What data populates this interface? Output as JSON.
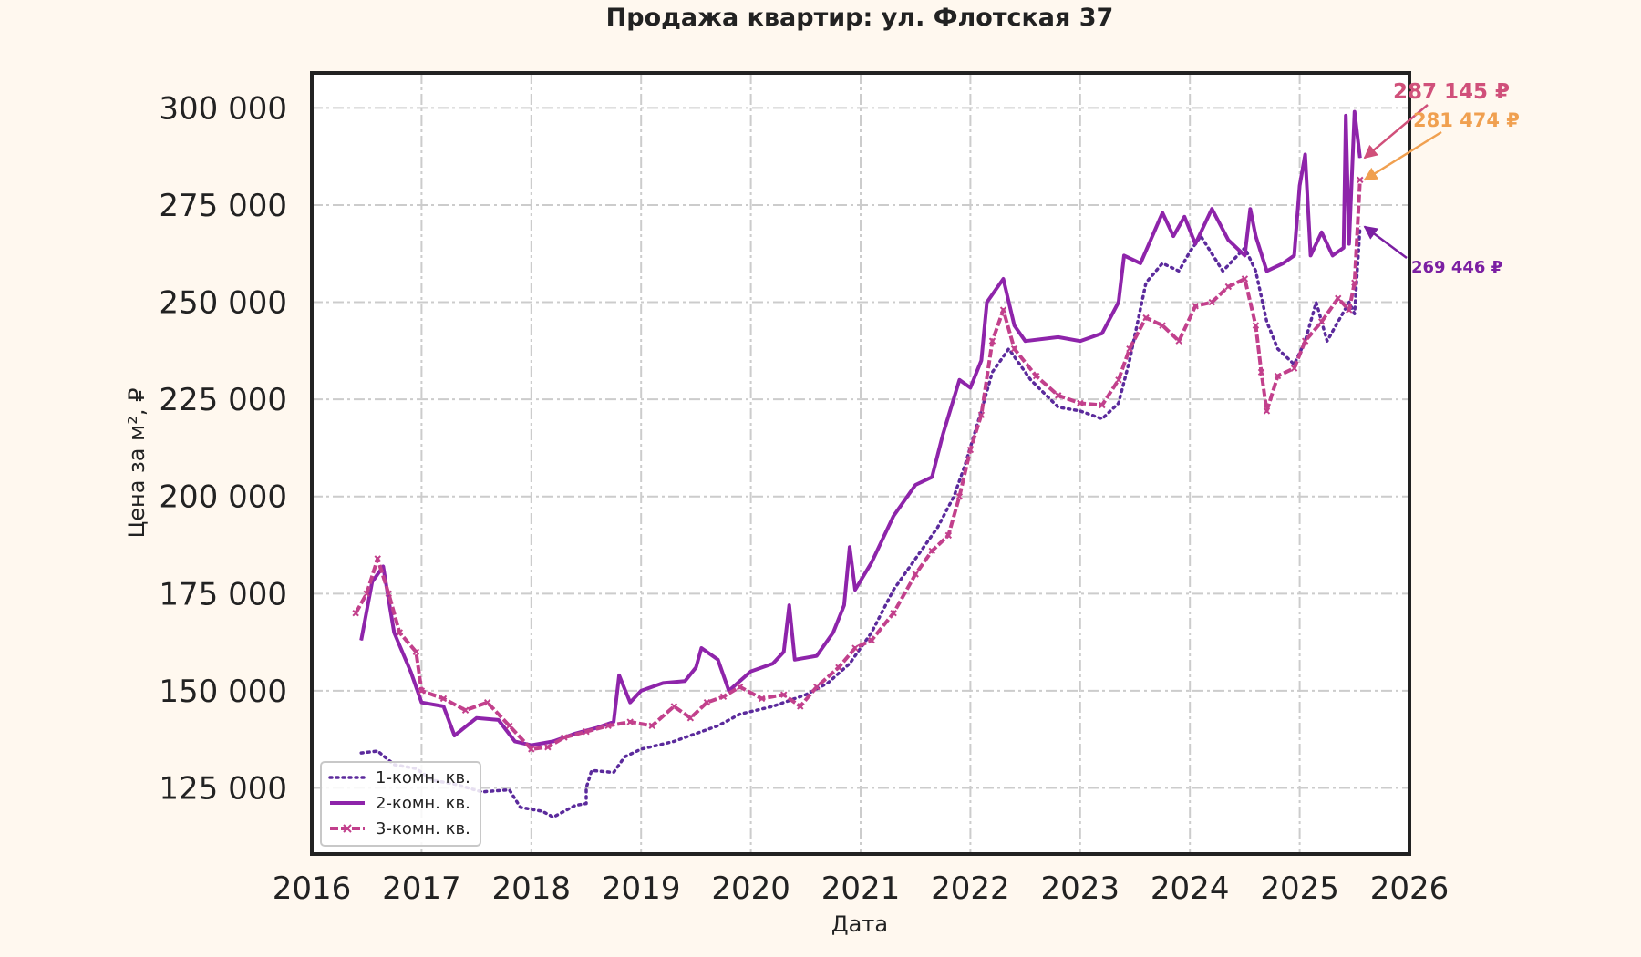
{
  "chart_data": {
    "type": "line",
    "title": "Продажа квартир: ул. Флотская 37",
    "xlabel": "Дата",
    "ylabel": "Цена за м², ₽",
    "xlim": [
      2016,
      2026
    ],
    "ylim": [
      108000,
      309000
    ],
    "x_ticks": [
      "2016",
      "2017",
      "2018",
      "2019",
      "2020",
      "2021",
      "2022",
      "2023",
      "2024",
      "2025",
      "2026"
    ],
    "y_ticks": [
      {
        "value": 125000,
        "label": "125 000"
      },
      {
        "value": 150000,
        "label": "150 000"
      },
      {
        "value": 175000,
        "label": "175 000"
      },
      {
        "value": 200000,
        "label": "200 000"
      },
      {
        "value": 225000,
        "label": "225 000"
      },
      {
        "value": 250000,
        "label": "250 000"
      },
      {
        "value": 275000,
        "label": "275 000"
      },
      {
        "value": 300000,
        "label": "300 000"
      }
    ],
    "grid": true,
    "legend_position": "bottom-left",
    "series": [
      {
        "name": "1-комн. кв.",
        "color": "#5b2a9c",
        "style": "dotted",
        "points": [
          [
            2016.45,
            134000
          ],
          [
            2016.6,
            134500
          ],
          [
            2016.75,
            131000
          ],
          [
            2016.95,
            130000
          ],
          [
            2017.1,
            127000
          ],
          [
            2017.3,
            126000
          ],
          [
            2017.55,
            124000
          ],
          [
            2017.8,
            124500
          ],
          [
            2017.9,
            120000
          ],
          [
            2018.1,
            119000
          ],
          [
            2018.2,
            117500
          ],
          [
            2018.4,
            120500
          ],
          [
            2018.5,
            121000
          ],
          [
            2018.5,
            125000
          ],
          [
            2018.55,
            129500
          ],
          [
            2018.75,
            129000
          ],
          [
            2018.85,
            133000
          ],
          [
            2019.0,
            135000
          ],
          [
            2019.3,
            137000
          ],
          [
            2019.5,
            139000
          ],
          [
            2019.7,
            141000
          ],
          [
            2019.9,
            144000
          ],
          [
            2020.2,
            146000
          ],
          [
            2020.5,
            149000
          ],
          [
            2020.7,
            152000
          ],
          [
            2020.9,
            157000
          ],
          [
            2021.1,
            165000
          ],
          [
            2021.3,
            176000
          ],
          [
            2021.5,
            184000
          ],
          [
            2021.7,
            192000
          ],
          [
            2021.85,
            200000
          ],
          [
            2021.95,
            208000
          ],
          [
            2022.1,
            222000
          ],
          [
            2022.2,
            232000
          ],
          [
            2022.35,
            238000
          ],
          [
            2022.55,
            230000
          ],
          [
            2022.8,
            223000
          ],
          [
            2023.0,
            222000
          ],
          [
            2023.2,
            220000
          ],
          [
            2023.35,
            224000
          ],
          [
            2023.45,
            235000
          ],
          [
            2023.6,
            255000
          ],
          [
            2023.75,
            260000
          ],
          [
            2023.9,
            258000
          ],
          [
            2024.0,
            263000
          ],
          [
            2024.1,
            267000
          ],
          [
            2024.3,
            258000
          ],
          [
            2024.5,
            264000
          ],
          [
            2024.6,
            258000
          ],
          [
            2024.7,
            245000
          ],
          [
            2024.8,
            238000
          ],
          [
            2024.95,
            234000
          ],
          [
            2025.05,
            240000
          ],
          [
            2025.15,
            250000
          ],
          [
            2025.25,
            240000
          ],
          [
            2025.35,
            245000
          ],
          [
            2025.45,
            250000
          ],
          [
            2025.5,
            247000
          ],
          [
            2025.55,
            269446
          ]
        ]
      },
      {
        "name": "2-комн. кв.",
        "color": "#8e24aa",
        "style": "solid",
        "points": [
          [
            2016.45,
            163000
          ],
          [
            2016.55,
            178000
          ],
          [
            2016.65,
            182000
          ],
          [
            2016.75,
            165000
          ],
          [
            2016.9,
            155000
          ],
          [
            2017.0,
            147000
          ],
          [
            2017.2,
            146000
          ],
          [
            2017.3,
            138500
          ],
          [
            2017.5,
            143000
          ],
          [
            2017.7,
            142500
          ],
          [
            2017.85,
            137000
          ],
          [
            2018.0,
            136000
          ],
          [
            2018.2,
            137000
          ],
          [
            2018.4,
            139000
          ],
          [
            2018.6,
            140500
          ],
          [
            2018.75,
            142000
          ],
          [
            2018.8,
            154000
          ],
          [
            2018.9,
            147000
          ],
          [
            2019.0,
            150000
          ],
          [
            2019.2,
            152000
          ],
          [
            2019.4,
            152500
          ],
          [
            2019.5,
            156000
          ],
          [
            2019.55,
            161000
          ],
          [
            2019.7,
            158000
          ],
          [
            2019.8,
            150000
          ],
          [
            2020.0,
            155000
          ],
          [
            2020.2,
            157000
          ],
          [
            2020.3,
            160000
          ],
          [
            2020.35,
            172000
          ],
          [
            2020.4,
            158000
          ],
          [
            2020.6,
            159000
          ],
          [
            2020.75,
            165000
          ],
          [
            2020.85,
            172000
          ],
          [
            2020.9,
            187000
          ],
          [
            2020.95,
            176000
          ],
          [
            2021.1,
            183000
          ],
          [
            2021.3,
            195000
          ],
          [
            2021.5,
            203000
          ],
          [
            2021.65,
            205000
          ],
          [
            2021.75,
            216000
          ],
          [
            2021.9,
            230000
          ],
          [
            2022.0,
            228000
          ],
          [
            2022.1,
            235000
          ],
          [
            2022.15,
            250000
          ],
          [
            2022.3,
            256000
          ],
          [
            2022.4,
            244000
          ],
          [
            2022.5,
            240000
          ],
          [
            2022.8,
            241000
          ],
          [
            2023.0,
            240000
          ],
          [
            2023.2,
            242000
          ],
          [
            2023.35,
            250000
          ],
          [
            2023.4,
            262000
          ],
          [
            2023.55,
            260000
          ],
          [
            2023.75,
            273000
          ],
          [
            2023.85,
            267000
          ],
          [
            2023.95,
            272000
          ],
          [
            2024.05,
            265000
          ],
          [
            2024.2,
            274000
          ],
          [
            2024.35,
            266000
          ],
          [
            2024.5,
            262000
          ],
          [
            2024.55,
            274000
          ],
          [
            2024.6,
            267000
          ],
          [
            2024.7,
            258000
          ],
          [
            2024.85,
            260000
          ],
          [
            2024.95,
            262000
          ],
          [
            2025.0,
            280000
          ],
          [
            2025.05,
            288000
          ],
          [
            2025.1,
            262000
          ],
          [
            2025.2,
            268000
          ],
          [
            2025.3,
            262000
          ],
          [
            2025.4,
            264000
          ],
          [
            2025.42,
            298000
          ],
          [
            2025.45,
            265000
          ],
          [
            2025.5,
            299000
          ],
          [
            2025.55,
            287145
          ]
        ]
      },
      {
        "name": "3-комн. кв.",
        "color": "#c2408c",
        "style": "dashed-x",
        "points": [
          [
            2016.4,
            170000
          ],
          [
            2016.5,
            175000
          ],
          [
            2016.6,
            184000
          ],
          [
            2016.7,
            175000
          ],
          [
            2016.8,
            165000
          ],
          [
            2016.95,
            160000
          ],
          [
            2017.0,
            150000
          ],
          [
            2017.2,
            148000
          ],
          [
            2017.4,
            145000
          ],
          [
            2017.6,
            147000
          ],
          [
            2017.8,
            141000
          ],
          [
            2018.0,
            135000
          ],
          [
            2018.15,
            135500
          ],
          [
            2018.3,
            138000
          ],
          [
            2018.5,
            139500
          ],
          [
            2018.7,
            141000
          ],
          [
            2018.9,
            142000
          ],
          [
            2019.1,
            141000
          ],
          [
            2019.3,
            146000
          ],
          [
            2019.45,
            143000
          ],
          [
            2019.6,
            147000
          ],
          [
            2019.75,
            148500
          ],
          [
            2019.9,
            151000
          ],
          [
            2020.1,
            148000
          ],
          [
            2020.3,
            149000
          ],
          [
            2020.45,
            146000
          ],
          [
            2020.6,
            151000
          ],
          [
            2020.8,
            156000
          ],
          [
            2020.95,
            161000
          ],
          [
            2021.1,
            163000
          ],
          [
            2021.3,
            170000
          ],
          [
            2021.5,
            180000
          ],
          [
            2021.65,
            186000
          ],
          [
            2021.8,
            190000
          ],
          [
            2021.9,
            200000
          ],
          [
            2022.0,
            212000
          ],
          [
            2022.1,
            221000
          ],
          [
            2022.2,
            240000
          ],
          [
            2022.3,
            248000
          ],
          [
            2022.4,
            238000
          ],
          [
            2022.6,
            231000
          ],
          [
            2022.8,
            226000
          ],
          [
            2023.0,
            224000
          ],
          [
            2023.2,
            223500
          ],
          [
            2023.35,
            230000
          ],
          [
            2023.45,
            238000
          ],
          [
            2023.6,
            246000
          ],
          [
            2023.75,
            244000
          ],
          [
            2023.9,
            240000
          ],
          [
            2024.05,
            249000
          ],
          [
            2024.2,
            250000
          ],
          [
            2024.35,
            254000
          ],
          [
            2024.5,
            256000
          ],
          [
            2024.6,
            244000
          ],
          [
            2024.65,
            232000
          ],
          [
            2024.7,
            222000
          ],
          [
            2024.8,
            231000
          ],
          [
            2024.95,
            233000
          ],
          [
            2025.05,
            240000
          ],
          [
            2025.2,
            245000
          ],
          [
            2025.35,
            251000
          ],
          [
            2025.45,
            248000
          ],
          [
            2025.5,
            255000
          ],
          [
            2025.55,
            281474
          ]
        ]
      }
    ],
    "annotations": [
      {
        "text": "287 145 ₽",
        "x": 2025.55,
        "y": 287145,
        "color": "#d0507a"
      },
      {
        "text": "281 474 ₽",
        "x": 2025.55,
        "y": 281474,
        "color": "#f0a050"
      },
      {
        "text": "269 446 ₽",
        "x": 2025.55,
        "y": 269446,
        "color": "#7b1fa2"
      }
    ]
  }
}
